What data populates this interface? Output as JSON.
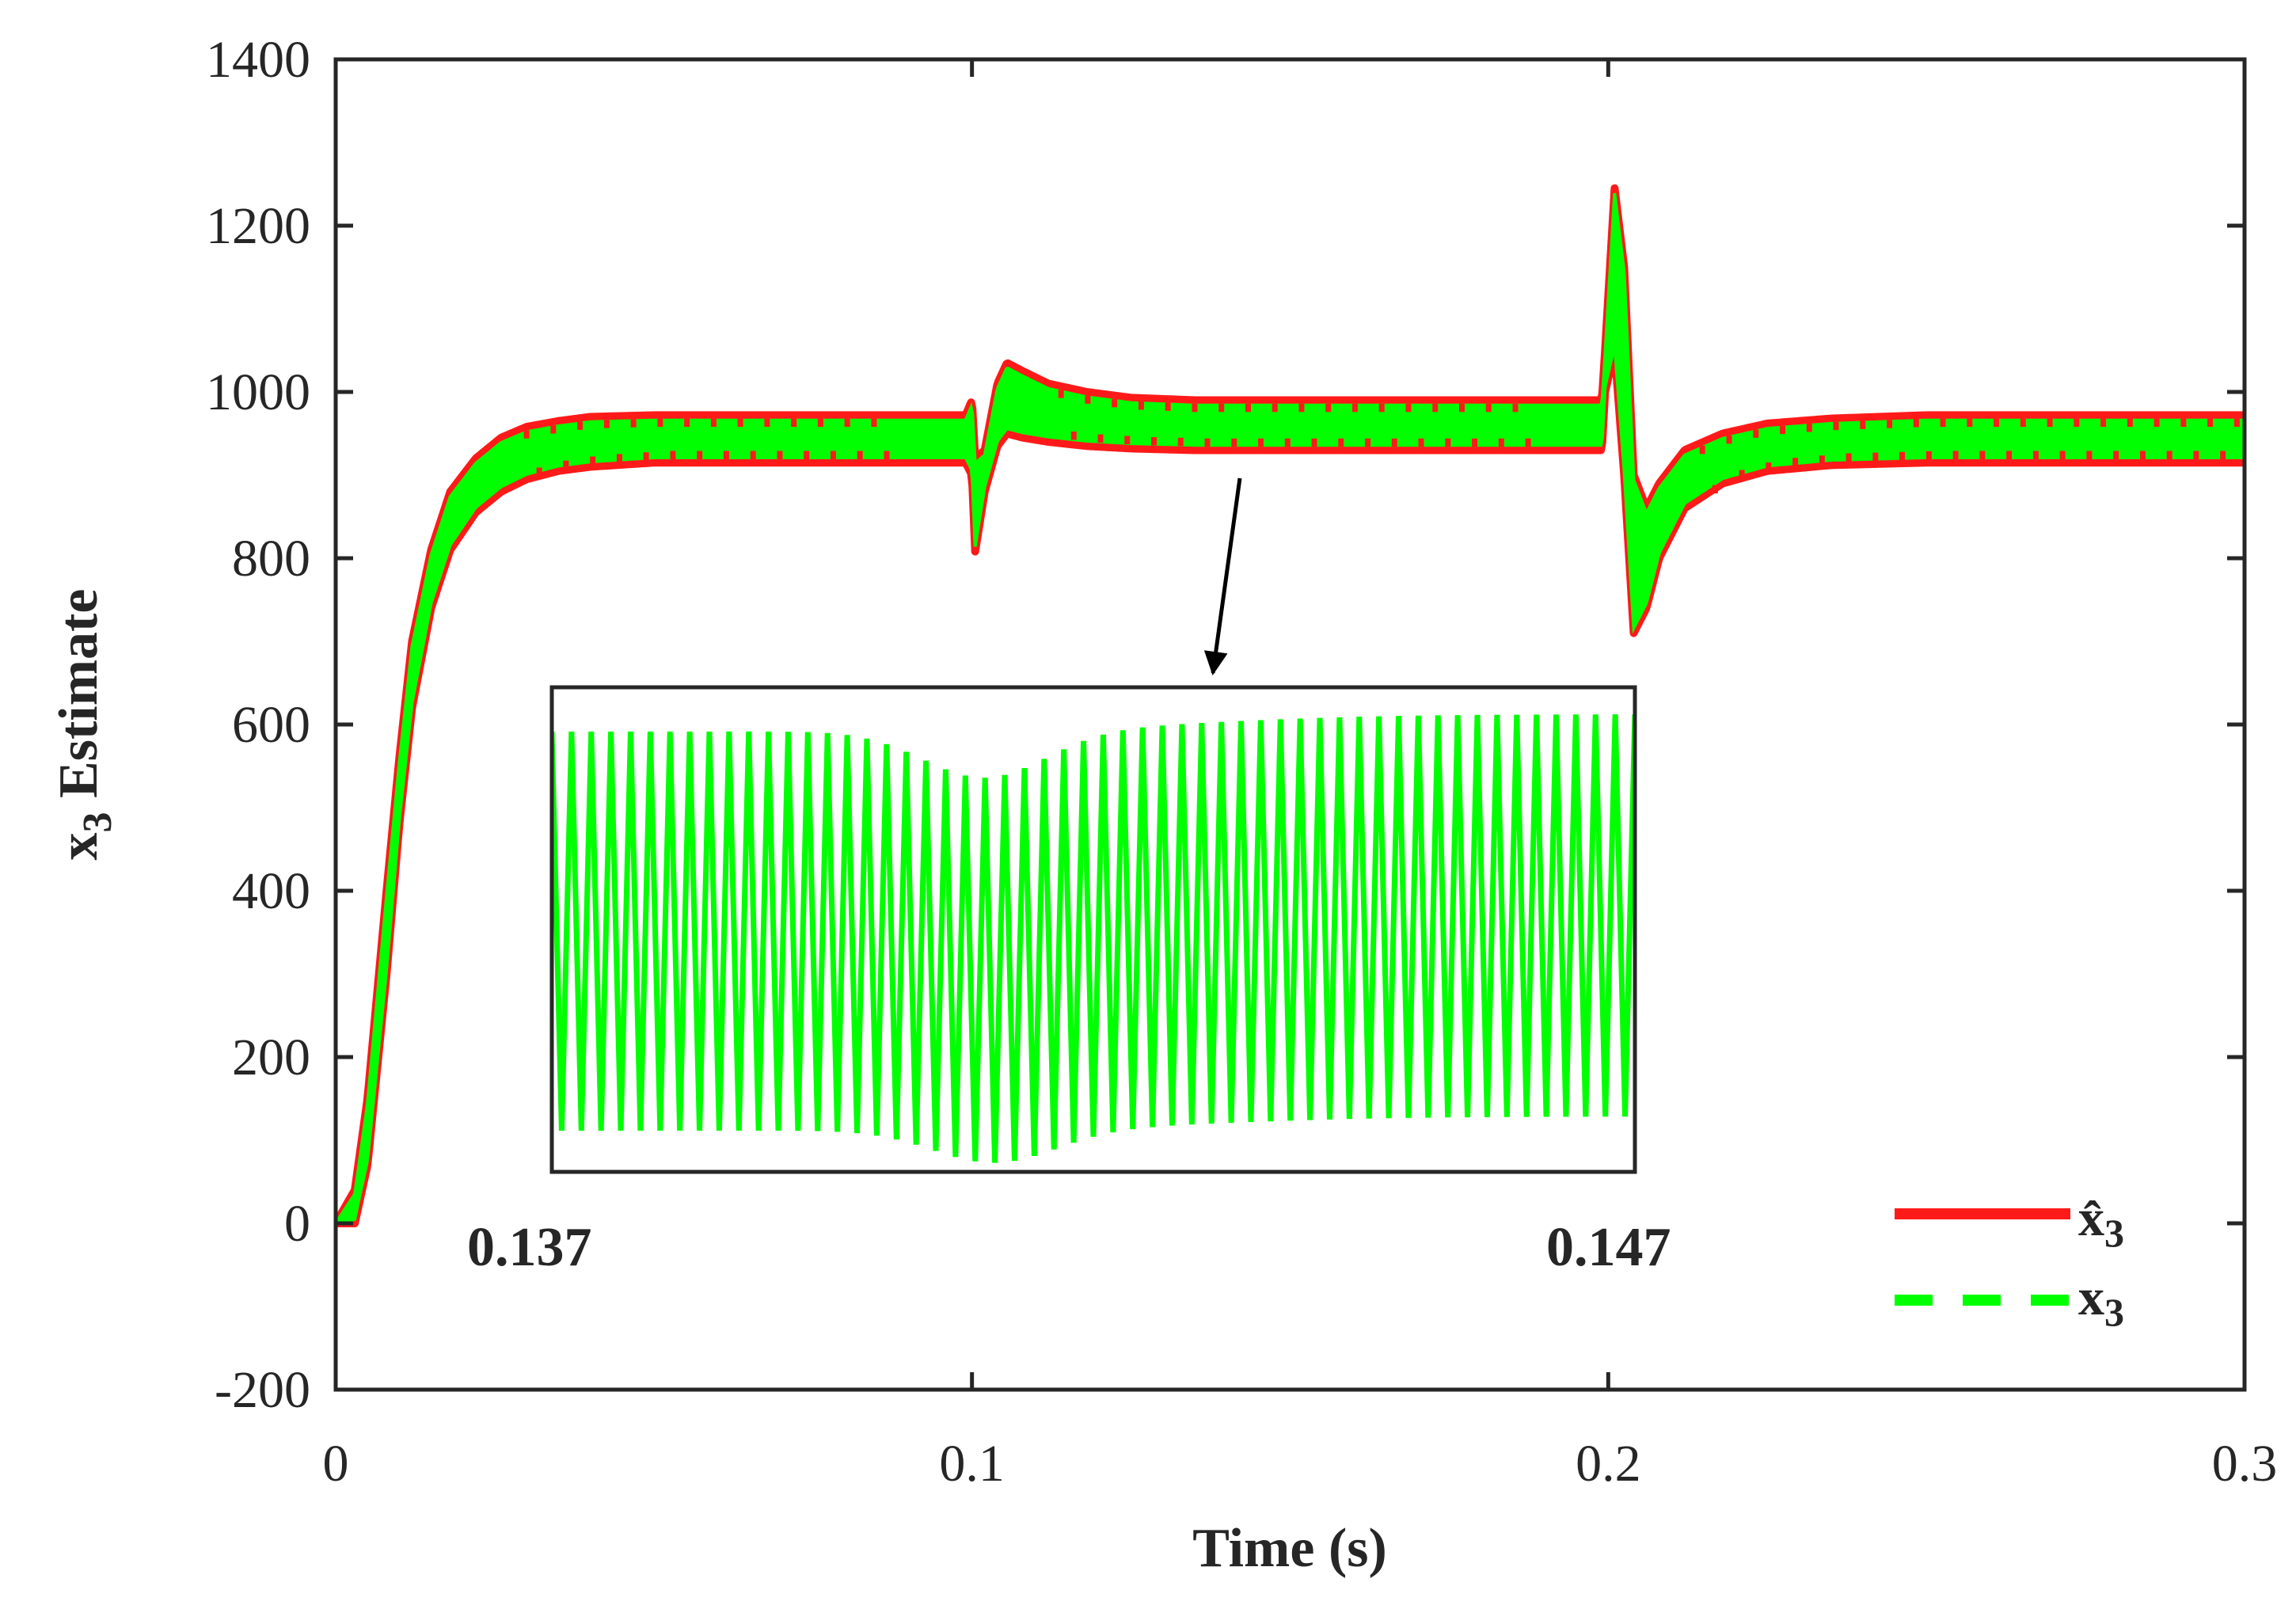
{
  "chart_data": {
    "type": "line",
    "title": "",
    "xlabel": "Time (s)",
    "ylabel_main": "x",
    "ylabel_sub": "3",
    "ylabel_rest": " Estimate",
    "xlim": [
      0,
      0.3
    ],
    "ylim": [
      -200,
      1400
    ],
    "xticks": [
      0,
      0.1,
      0.2,
      0.3
    ],
    "xtick_labels": [
      "0",
      "0.1",
      "0.2",
      "0.3"
    ],
    "yticks": [
      -200,
      0,
      200,
      400,
      600,
      800,
      1000,
      1200,
      1400
    ],
    "ytick_labels": [
      "-200",
      "0",
      "200",
      "400",
      "600",
      "800",
      "1000",
      "1200",
      "1400"
    ],
    "grid": false,
    "legend_position": "bottom-right",
    "series": [
      {
        "name": "x̂3",
        "label_main": "x̂",
        "label_sub": "3",
        "color": "#ff1a1a",
        "style": "solid",
        "envelope": {
          "x": [
            0,
            0.003,
            0.005,
            0.008,
            0.01,
            0.012,
            0.015,
            0.018,
            0.022,
            0.026,
            0.03,
            0.035,
            0.04,
            0.05,
            0.099,
            0.1,
            0.1005,
            0.102,
            0.104,
            0.1055,
            0.108,
            0.112,
            0.118,
            0.125,
            0.135,
            0.15,
            0.175,
            0.199,
            0.1995,
            0.201,
            0.2025,
            0.204,
            0.206,
            0.208,
            0.212,
            0.218,
            0.225,
            0.235,
            0.25,
            0.275,
            0.3
          ],
          "upper": [
            0,
            40,
            150,
            400,
            560,
            700,
            810,
            880,
            920,
            945,
            958,
            965,
            970,
            972,
            972,
            990,
            920,
            930,
            1010,
            1035,
            1025,
            1010,
            1000,
            993,
            990,
            990,
            990,
            990,
            1050,
            1245,
            1150,
            900,
            860,
            890,
            930,
            950,
            962,
            968,
            972,
            972,
            972
          ],
          "lower": [
            0,
            0,
            70,
            300,
            480,
            620,
            740,
            810,
            855,
            880,
            895,
            905,
            910,
            915,
            915,
            900,
            808,
            880,
            935,
            950,
            945,
            940,
            935,
            932,
            930,
            930,
            930,
            930,
            1000,
            1050,
            900,
            710,
            740,
            800,
            860,
            890,
            905,
            912,
            915,
            915,
            915
          ]
        }
      },
      {
        "name": "x3",
        "label_main": "x",
        "label_sub": "3",
        "color": "#00ff00",
        "style": "dashed"
      }
    ],
    "inset": {
      "x_start_label": "0.137",
      "x_end_label": "0.147",
      "x_range": [
        0.137,
        0.147
      ],
      "cycles": 55,
      "dip_position": 0.4,
      "annotation_arrow_target": {
        "x": 0.142,
        "y": 920
      }
    }
  }
}
